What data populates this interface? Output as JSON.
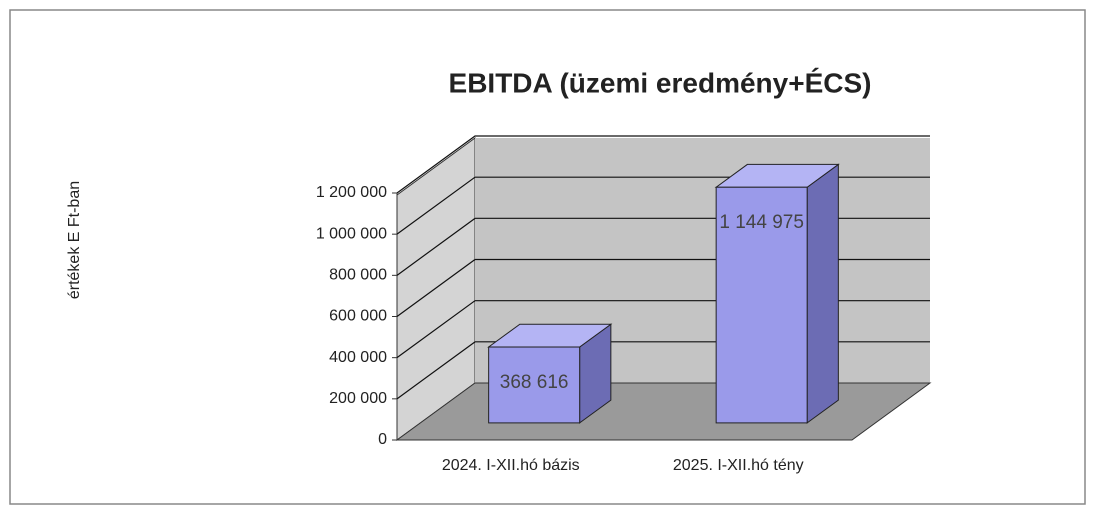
{
  "chart_data": {
    "type": "bar3d",
    "title": "EBITDA (üzemi eredmény+ÉCS)",
    "y_label": "értékek E Ft-ban",
    "categories": [
      "2024. I-XII.hó bázis",
      "2025. I-XII.hó tény"
    ],
    "values": [
      368616,
      1144975
    ],
    "value_labels": [
      "368 616",
      "1 144 975"
    ],
    "color": "#9a9aea",
    "ylim": [
      0,
      1200000
    ],
    "yticks": [
      0,
      {
        "value": 200000,
        "label": "200 000"
      },
      {
        "value": 400000,
        "label": "400 000"
      },
      {
        "value": 600000,
        "label": "600 000"
      },
      {
        "value": 800000,
        "label": "800 000"
      },
      {
        "value": 1000000,
        "label": "1 000 000"
      },
      {
        "value": 1200000,
        "label": "1 200 000"
      }
    ],
    "grid": true
  }
}
